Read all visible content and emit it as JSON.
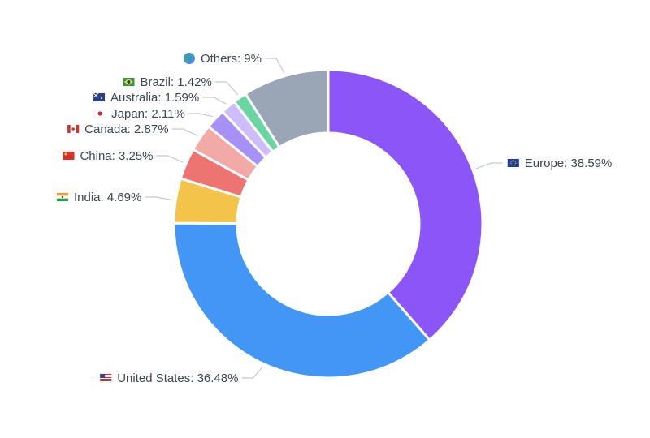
{
  "chart_data": {
    "type": "pie",
    "variant": "donut",
    "title": "",
    "slices": [
      {
        "label": "Europe",
        "value": 38.59,
        "display": "Europe: 38.59%",
        "color": "#8b55f7",
        "flag": "eu-flag-icon"
      },
      {
        "label": "United States",
        "value": 36.48,
        "display": "United States: 36.48%",
        "color": "#4296f5",
        "flag": "us-flag-icon"
      },
      {
        "label": "India",
        "value": 4.69,
        "display": "India: 4.69%",
        "color": "#f4c34a",
        "flag": "india-flag-icon"
      },
      {
        "label": "China",
        "value": 3.25,
        "display": "China: 3.25%",
        "color": "#ee7472",
        "flag": "china-flag-icon"
      },
      {
        "label": "Canada",
        "value": 2.87,
        "display": "Canada: 2.87%",
        "color": "#f2aaa6",
        "flag": "canada-flag-icon"
      },
      {
        "label": "Japan",
        "value": 2.11,
        "display": "Japan: 2.11%",
        "color": "#a891f6",
        "flag": "japan-flag-icon"
      },
      {
        "label": "Australia",
        "value": 1.59,
        "display": "Australia: 1.59%",
        "color": "#cdbdfb",
        "flag": "australia-flag-icon"
      },
      {
        "label": "Brazil",
        "value": 1.42,
        "display": "Brazil: 1.42%",
        "color": "#68d5a2",
        "flag": "brazil-flag-icon"
      },
      {
        "label": "Others",
        "value": 9,
        "display": "Others: 9%",
        "color": "#9aa5b6",
        "flag": "globe-icon"
      }
    ]
  }
}
